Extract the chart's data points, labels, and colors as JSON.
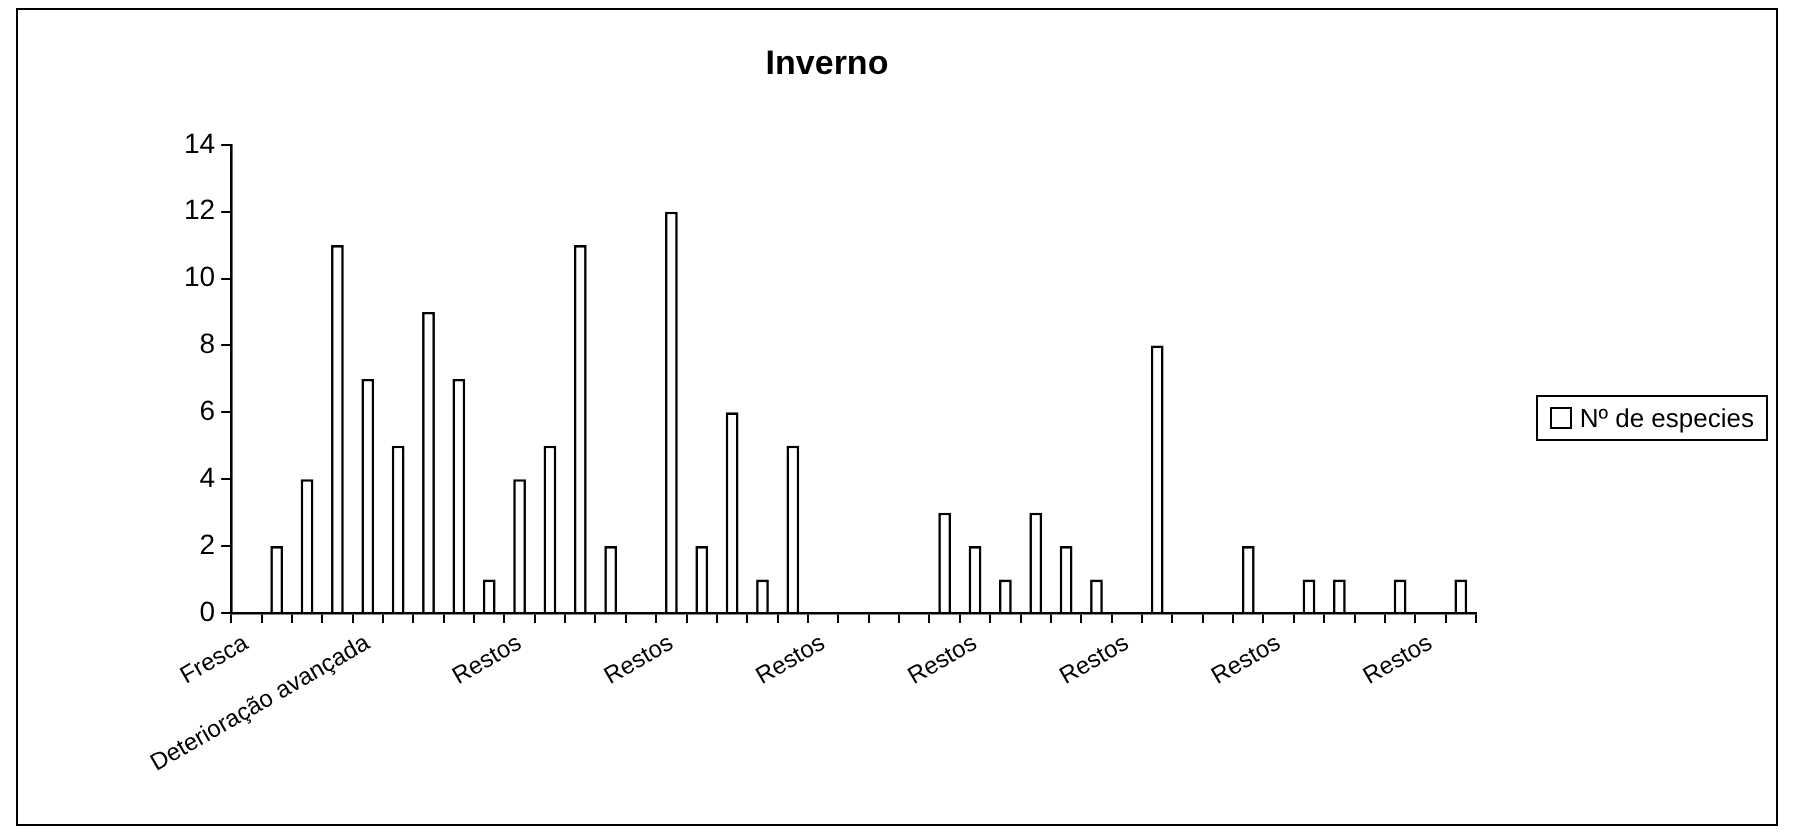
{
  "chart_data": {
    "type": "bar",
    "title": "Inverno",
    "categories": [
      "Fresca",
      null,
      null,
      null,
      "Deterioração avançada",
      null,
      null,
      null,
      null,
      "Restos",
      null,
      null,
      null,
      null,
      "Restos",
      null,
      null,
      null,
      null,
      "Restos",
      null,
      null,
      null,
      null,
      "Restos",
      null,
      null,
      null,
      null,
      "Restos",
      null,
      null,
      null,
      null,
      "Restos",
      null,
      null,
      null,
      null,
      "Restos",
      null
    ],
    "series": [
      {
        "name": "Nº de especies",
        "color": "#ffffff",
        "values": [
          0,
          2,
          4,
          11,
          7,
          5,
          9,
          7,
          1,
          4,
          5,
          11,
          2,
          0,
          12,
          2,
          6,
          1,
          5,
          0,
          0,
          0,
          0,
          3,
          2,
          1,
          3,
          2,
          1,
          0,
          8,
          0,
          0,
          2,
          0,
          1,
          1,
          0,
          1,
          0,
          1
        ]
      }
    ],
    "ylim": [
      0,
      14
    ],
    "yticks": [
      0,
      2,
      4,
      6,
      8,
      10,
      12,
      14
    ],
    "grid": false,
    "legend": "right"
  }
}
